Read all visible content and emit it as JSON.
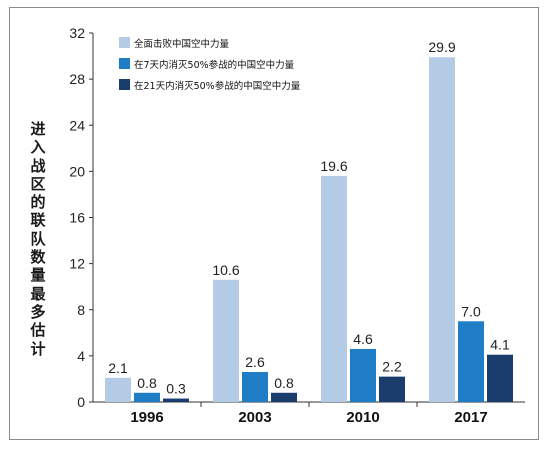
{
  "chart_data": {
    "type": "bar",
    "categories": [
      "1996",
      "2003",
      "2010",
      "2017"
    ],
    "series": [
      {
        "name": "全面击败中国空中力量",
        "values": [
          2.1,
          10.6,
          19.6,
          29.9
        ],
        "color": "#b3cbe4"
      },
      {
        "name": "在7天内消灭50%参战的中国空中力量",
        "values": [
          0.8,
          2.6,
          4.6,
          7.0
        ],
        "color": "#1e7dc4"
      },
      {
        "name": "在21天内消灭50%参战的中国空中力量",
        "values": [
          0.3,
          0.8,
          2.2,
          4.1
        ],
        "color": "#1b3d6e"
      }
    ],
    "ylabel": "进入战区的联队数量最多估计",
    "yticks": [
      0,
      4,
      8,
      12,
      16,
      20,
      24,
      28,
      32
    ],
    "ylim": [
      0,
      32
    ],
    "grid": false,
    "legend": "top-left"
  }
}
